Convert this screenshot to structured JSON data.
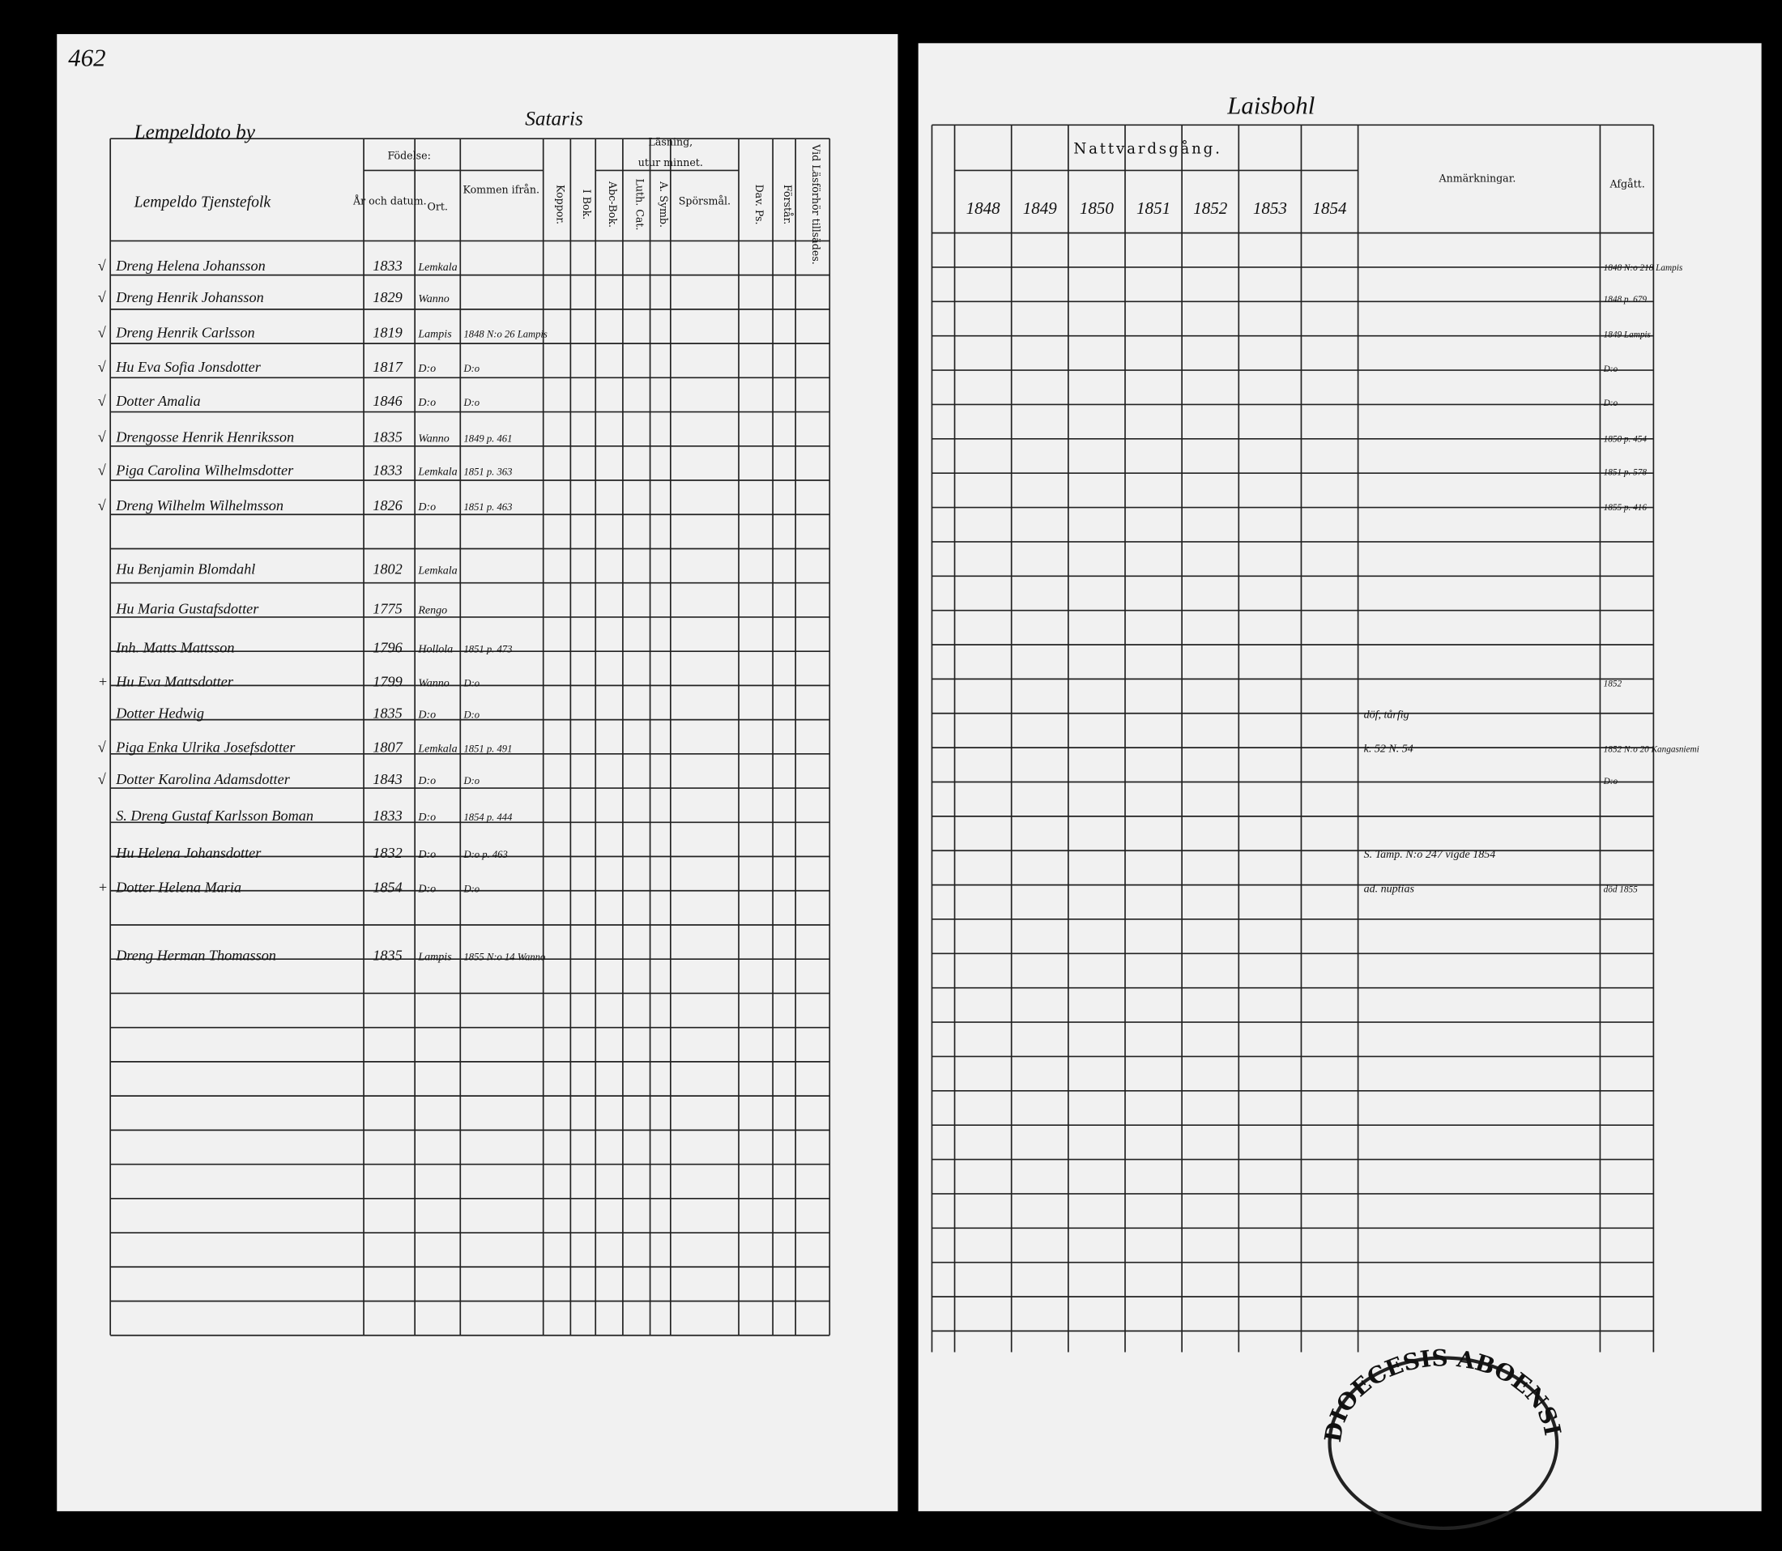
{
  "left_page": {
    "page_number": "462",
    "village": "Lempeldoto by",
    "parish": "Sataris",
    "household": "Lempeldo Tjenstefolk",
    "headers": {
      "birth": "Födelse:",
      "year": "År och datum.",
      "place": "Ort.",
      "from": "Kommen ifrån.",
      "pox": "Koppor.",
      "reading": "Läsning,",
      "memory": "utur minnet.",
      "book": "I Bok.",
      "abc": "Abc-Bok.",
      "cat": "Luth. Cat.",
      "symb": "A. Symb.",
      "questions": "Spörsmål.",
      "psalms": "Dav. Ps.",
      "understands": "Förstår.",
      "hearing": "Vid Läsförhör tillsädes."
    },
    "rows": [
      {
        "mark": "√",
        "name": "Dreng Helena Johansson",
        "year": "1833",
        "place": "Lemkala"
      },
      {
        "mark": "√",
        "name": "Dreng Henrik Johansson",
        "year": "1829",
        "place": "Wanno"
      },
      {
        "mark": "√",
        "name": "Dreng Henrik Carlsson",
        "year": "1819",
        "place": "Lampis",
        "from": "1848 N:o 26 Lampis"
      },
      {
        "mark": "√",
        "name": "Hu Eva Sofia Jonsdotter",
        "year": "1817",
        "place": "D:o",
        "from": "D:o"
      },
      {
        "mark": "√",
        "name": "Dotter Amalia",
        "year": "1846",
        "place": "D:o",
        "from": "D:o"
      },
      {
        "mark": "√",
        "name": "Drengosse Henrik Henriksson",
        "year": "1835",
        "place": "Wanno",
        "from": "1849 p. 461"
      },
      {
        "mark": "√",
        "name": "Piga Carolina Wilhelmsdotter",
        "year": "1833",
        "place": "Lemkala",
        "from": "1851 p. 363"
      },
      {
        "mark": "√",
        "name": "Dreng Wilhelm Wilhelmsson",
        "year": "1826",
        "place": "D:o",
        "from": "1851 p. 463"
      },
      {
        "name": "Hu Benjamin Blomdahl",
        "year": "1802",
        "place": "Lemkala"
      },
      {
        "name": "Hu Maria Gustafsdotter",
        "year": "1775",
        "place": "Rengo"
      },
      {
        "name": "Inh. Matts Mattsson",
        "year": "1796",
        "place": "Hollola",
        "from": "1851 p. 473"
      },
      {
        "mark": "+",
        "name": "Hu Eva Mattsdotter",
        "year": "1799",
        "place": "Wanno",
        "from": "D:o"
      },
      {
        "name": "Dotter Hedwig",
        "year": "1835",
        "place": "D:o",
        "from": "D:o"
      },
      {
        "mark": "√",
        "name": "Piga Enka Ulrika Josefsdotter",
        "year": "1807",
        "place": "Lemkala",
        "from": "1851 p. 491"
      },
      {
        "mark": "√",
        "name": "Dotter Karolina Adamsdotter",
        "year": "1843",
        "place": "D:o",
        "from": "D:o"
      },
      {
        "name": "S. Dreng Gustaf Karlsson Boman",
        "year": "1833",
        "place": "D:o",
        "from": "1854 p. 444"
      },
      {
        "name": "Hu Helena Johansdotter",
        "year": "1832",
        "place": "D:o",
        "from": "D:o p. 463"
      },
      {
        "mark": "+",
        "name": "Dotter Helena Maria",
        "year": "1854",
        "place": "D:o",
        "from": "D:o"
      },
      {
        "name": "Dreng Herman Thomasson",
        "year": "1835",
        "place": "Lampis",
        "from": "1855 N:o 14 Wanno"
      }
    ]
  },
  "right_page": {
    "title": "Laisbohl",
    "communion": "Nattvardsgång.",
    "years": [
      "1848",
      "1849",
      "1850",
      "1851",
      "1852",
      "1853",
      "1854"
    ],
    "remarks": "Anmärkningar.",
    "departed": "Afgått.",
    "rows": [
      {
        "departed": "1848 N:o 218 Lampis"
      },
      {
        "departed": "1848 p. 679"
      },
      {
        "departed": "1849 Lampis"
      },
      {
        "departed": "D:o"
      },
      {
        "departed": "D:o"
      },
      {
        "departed": "1850 p. 454"
      },
      {
        "departed": "1851 p. 578"
      },
      {
        "departed": "1855 p. 416"
      },
      {},
      {},
      {},
      {
        "departed": "1852"
      },
      {
        "remark": "döf, tårfig"
      },
      {
        "remark": "k. 52 N. 54",
        "departed": "1852 N:o 20 Kangasniemi"
      },
      {
        "departed": "D:o"
      },
      {},
      {
        "remark": "S. Tamp. N:o 247 vigde 1854"
      },
      {
        "remark": "ad. nuptias",
        "departed": "död 1855"
      },
      {}
    ],
    "stamp": "DIOECESIS ABOENSIS"
  }
}
